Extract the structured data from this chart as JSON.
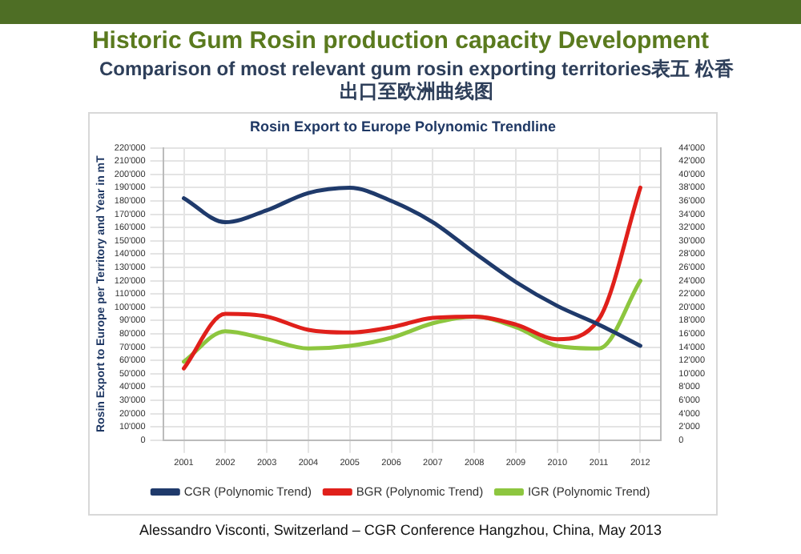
{
  "chart_data": {
    "type": "line",
    "title": "Historic Gum Rosin production capacity Development",
    "subtitle": "Comparison of most relevant gum rosin exporting territories表五 松香出口至欧洲曲线图",
    "annotations": [
      "Rosin Export to Europe Polynomic Trendline",
      "Alessandro Visconti, Switzerland – CGR Conference Hangzhou, China, May 2013"
    ],
    "ylabel": "Rosin Export to Europe per Territory and Year in mT",
    "categories": [
      "2001",
      "2002",
      "2003",
      "2004",
      "2005",
      "2006",
      "2007",
      "2008",
      "2009",
      "2010",
      "2011",
      "2012"
    ],
    "series": [
      {
        "name": "CGR (Polynomic Trend)",
        "color": "#1f3a6b",
        "values": [
          182000,
          164000,
          173000,
          186000,
          190000,
          180000,
          164000,
          141000,
          119000,
          101000,
          87000,
          71000
        ]
      },
      {
        "name": "BGR (Polynomic Trend)",
        "color": "#e0201b",
        "values": [
          54000,
          95000,
          93000,
          83000,
          81000,
          85000,
          92000,
          93000,
          87000,
          76000,
          91000,
          190000
        ]
      },
      {
        "name": "IGR (Polynomic Trend)",
        "color": "#8dc63f",
        "values": [
          59000,
          82000,
          76000,
          69000,
          71000,
          77000,
          88000,
          93000,
          85000,
          71000,
          69000,
          120000
        ]
      }
    ],
    "ylim": [
      0,
      220000
    ],
    "yticks": [
      0,
      {
        "value": 10000,
        "label": "10'000"
      },
      {
        "value": 20000,
        "label": "20'000"
      },
      {
        "value": 30000,
        "label": "30'000"
      },
      {
        "value": 40000,
        "label": "40'000"
      },
      {
        "value": 50000,
        "label": "50'000"
      },
      {
        "value": 60000,
        "label": "60'000"
      },
      {
        "value": 70000,
        "label": "70'000"
      },
      {
        "value": 80000,
        "label": "80'000"
      },
      {
        "value": 90000,
        "label": "90'000"
      },
      {
        "value": 100000,
        "label": "100'000"
      },
      {
        "value": 110000,
        "label": "110'000"
      },
      {
        "value": 120000,
        "label": "120'000"
      },
      {
        "value": 130000,
        "label": "130'000"
      },
      {
        "value": 140000,
        "label": "140'000"
      },
      {
        "value": 150000,
        "label": "150'000"
      },
      {
        "value": 160000,
        "label": "160'000"
      },
      {
        "value": 170000,
        "label": "170'000"
      },
      {
        "value": 180000,
        "label": "180'000"
      },
      {
        "value": 190000,
        "label": "190'000"
      },
      {
        "value": 200000,
        "label": "200'000"
      },
      {
        "value": 210000,
        "label": "210'000"
      },
      {
        "value": 220000,
        "label": "220'000"
      }
    ],
    "y2lim": [
      0,
      44000
    ],
    "y2ticks": [
      0,
      {
        "value": 2000,
        "label": "2'000"
      },
      {
        "value": 4000,
        "label": "4'000"
      },
      {
        "value": 6000,
        "label": "6'000"
      },
      {
        "value": 8000,
        "label": "8'000"
      },
      {
        "value": 10000,
        "label": "10'000"
      },
      {
        "value": 12000,
        "label": "12'000"
      },
      {
        "value": 14000,
        "label": "14'000"
      },
      {
        "value": 16000,
        "label": "16'000"
      },
      {
        "value": 18000,
        "label": "18'000"
      },
      {
        "value": 20000,
        "label": "20'000"
      },
      {
        "value": 22000,
        "label": "22'000"
      },
      {
        "value": 24000,
        "label": "24'000"
      },
      {
        "value": 26000,
        "label": "26'000"
      },
      {
        "value": 28000,
        "label": "28'000"
      },
      {
        "value": 30000,
        "label": "30'000"
      },
      {
        "value": 32000,
        "label": "32'000"
      },
      {
        "value": 34000,
        "label": "34'000"
      },
      {
        "value": 36000,
        "label": "36'000"
      },
      {
        "value": 38000,
        "label": "38'000"
      },
      {
        "value": 40000,
        "label": "40'000"
      },
      {
        "value": 42000,
        "label": "42'000"
      },
      {
        "value": 44000,
        "label": "44'000"
      }
    ],
    "grid": true,
    "legend": "bottom",
    "marker": "none",
    "line_style": "solid"
  }
}
